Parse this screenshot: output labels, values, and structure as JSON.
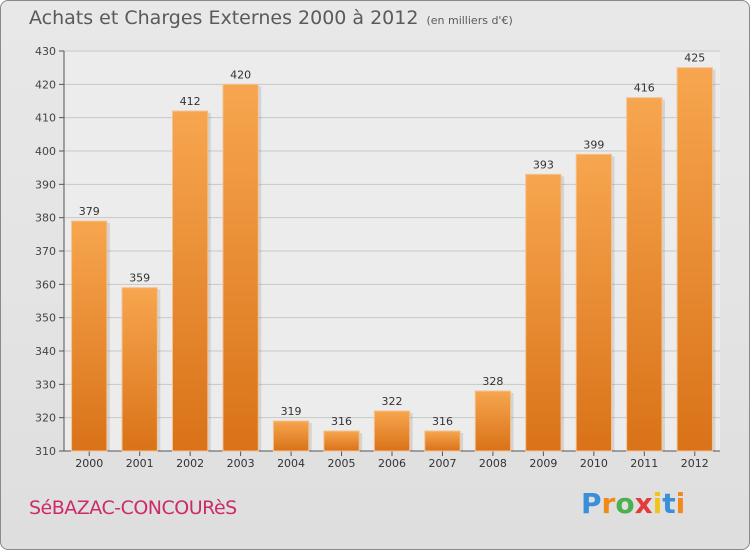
{
  "chart_data": {
    "type": "bar",
    "title": "Achats et Charges Externes 2000 à 2012",
    "subtitle": "(en milliers d'€)",
    "categories": [
      "2000",
      "2001",
      "2002",
      "2003",
      "2004",
      "2005",
      "2006",
      "2007",
      "2008",
      "2009",
      "2010",
      "2011",
      "2012"
    ],
    "values": [
      379,
      359,
      412,
      420,
      319,
      316,
      322,
      316,
      328,
      393,
      399,
      416,
      425
    ],
    "ylim": [
      310,
      430
    ],
    "yticks": [
      310,
      320,
      330,
      340,
      350,
      360,
      370,
      380,
      390,
      400,
      410,
      420,
      430
    ],
    "grid": true,
    "bar_color_top": "#f7a64f",
    "bar_color_bottom": "#d97218"
  },
  "footer": {
    "town": "SéBAZAC-CONCOURèS",
    "brand": [
      "P",
      "r",
      "o",
      "x",
      "i",
      "t",
      "i"
    ],
    "brand_colors": [
      "#3a8fd8",
      "#f08a1c",
      "#4caf50",
      "#e13b3b",
      "#f0c419",
      "#3a8fd8",
      "#f08a1c"
    ]
  }
}
